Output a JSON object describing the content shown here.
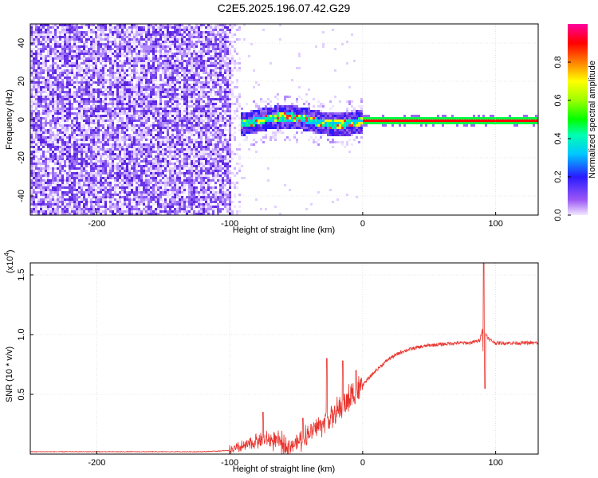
{
  "chart_data": [
    {
      "type": "heatmap",
      "title": "C2E5.2025.196.07.42.G29",
      "xlabel": "Height of straight line (km)",
      "ylabel": "Frequency (Hz)",
      "xlim": [
        -250,
        132
      ],
      "ylim": [
        -50,
        50
      ],
      "x_ticks": [
        "-200",
        "-100",
        "0",
        "100"
      ],
      "y_ticks": [
        "-40",
        "-20",
        "0",
        "20",
        "40"
      ],
      "colorbar": {
        "label": "Normalized spectral amplitude",
        "range": [
          0.0,
          1.0
        ],
        "ticks": [
          "0.0",
          "0.2",
          "0.4",
          "0.6",
          "0.8"
        ]
      },
      "grid": true,
      "description_values": {
        "noise_region_x": [
          -250,
          -100
        ],
        "transition_region_x": [
          -100,
          0
        ],
        "carrier_frequency": 0
      }
    },
    {
      "type": "line",
      "xlabel": "Height of straight line (km)",
      "ylabel": "SNR (10 * v/v)",
      "y_multiplier": "(x10",
      "y_multiplier_exp": "4",
      "xlim": [
        -250,
        132
      ],
      "ylim": [
        0,
        1.6
      ],
      "x_ticks": [
        "-200",
        "-100",
        "0",
        "100"
      ],
      "y_ticks": [
        "0.5",
        "1.0",
        "1.5"
      ],
      "grid": true,
      "color": "#e8342e",
      "series": [
        {
          "x": [
            -250,
            -200,
            -150,
            -120,
            -100,
            -90,
            -80,
            -70,
            -60,
            -55,
            -50,
            -45,
            -40,
            -30,
            -20,
            -10,
            0,
            10,
            20,
            30,
            40,
            50,
            60,
            70,
            80,
            88,
            90,
            91,
            92,
            95,
            100,
            110,
            120,
            132
          ],
          "values": [
            0.02,
            0.02,
            0.02,
            0.02,
            0.03,
            0.06,
            0.11,
            0.12,
            0.09,
            0.07,
            0.09,
            0.13,
            0.18,
            0.26,
            0.34,
            0.46,
            0.58,
            0.7,
            0.8,
            0.86,
            0.89,
            0.91,
            0.92,
            0.93,
            0.93,
            0.95,
            1.05,
            0.7,
            1.02,
            0.96,
            0.93,
            0.93,
            0.93,
            0.93
          ]
        }
      ],
      "spikes": [
        {
          "x": -75,
          "y": 0.35
        },
        {
          "x": -45,
          "y": 0.3
        },
        {
          "x": -27,
          "y": 0.8
        },
        {
          "x": -15,
          "y": 0.78
        },
        {
          "x": -5,
          "y": 0.7
        },
        {
          "x": 91,
          "y": 1.6
        },
        {
          "x": 92,
          "y": 0.55
        }
      ]
    }
  ]
}
